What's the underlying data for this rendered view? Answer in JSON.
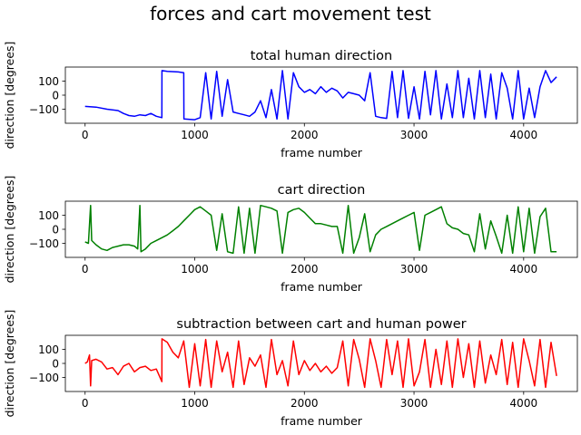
{
  "figure": {
    "title": "forces and cart movement test"
  },
  "chart_data": [
    {
      "type": "line",
      "title": "total human direction",
      "xlabel": "frame number",
      "ylabel": "direction [degrees]",
      "xlim": [
        -180,
        4490
      ],
      "ylim": [
        -200,
        200
      ],
      "xticks": [
        0,
        1000,
        2000,
        3000,
        4000
      ],
      "yticks": [
        100,
        0,
        -100
      ],
      "color": "#0000ff",
      "x": [
        0,
        100,
        200,
        300,
        350,
        400,
        450,
        500,
        550,
        600,
        650,
        700,
        701,
        750,
        850,
        900,
        901,
        1000,
        1050,
        1100,
        1150,
        1200,
        1250,
        1300,
        1350,
        1400,
        1450,
        1500,
        1550,
        1600,
        1650,
        1700,
        1750,
        1800,
        1850,
        1900,
        1950,
        2000,
        2050,
        2100,
        2150,
        2200,
        2250,
        2300,
        2350,
        2400,
        2450,
        2500,
        2550,
        2600,
        2650,
        2700,
        2750,
        2800,
        2850,
        2900,
        2950,
        3000,
        3050,
        3100,
        3150,
        3200,
        3250,
        3300,
        3350,
        3400,
        3450,
        3500,
        3550,
        3600,
        3650,
        3700,
        3750,
        3800,
        3850,
        3900,
        3950,
        4000,
        4050,
        4100,
        4150,
        4200,
        4250,
        4300
      ],
      "y": [
        -80,
        -85,
        -100,
        -110,
        -130,
        -145,
        -150,
        -140,
        -145,
        -130,
        -150,
        -160,
        175,
        170,
        165,
        160,
        -170,
        -175,
        -160,
        160,
        -170,
        170,
        -150,
        110,
        -120,
        -130,
        -140,
        -150,
        -120,
        -40,
        -160,
        40,
        -170,
        175,
        -170,
        160,
        60,
        20,
        40,
        10,
        60,
        20,
        50,
        30,
        -20,
        20,
        10,
        0,
        -40,
        160,
        -150,
        -160,
        -165,
        170,
        -160,
        175,
        -165,
        60,
        -170,
        170,
        -140,
        175,
        -170,
        80,
        -160,
        175,
        -160,
        120,
        -170,
        175,
        -160,
        150,
        -170,
        160,
        50,
        -170,
        175,
        -170,
        50,
        -160,
        60,
        175,
        90,
        130
      ]
    },
    {
      "type": "line",
      "title": "cart direction",
      "xlabel": "frame number",
      "ylabel": "direction [degrees]",
      "xlim": [
        -180,
        4490
      ],
      "ylim": [
        -200,
        200
      ],
      "xticks": [
        0,
        1000,
        2000,
        3000,
        4000
      ],
      "yticks": [
        100,
        0,
        -100
      ],
      "color": "#008000",
      "x": [
        0,
        30,
        50,
        60,
        100,
        150,
        200,
        250,
        300,
        350,
        400,
        450,
        480,
        500,
        510,
        550,
        600,
        650,
        700,
        750,
        800,
        850,
        900,
        950,
        1000,
        1050,
        1100,
        1150,
        1200,
        1250,
        1300,
        1350,
        1400,
        1450,
        1500,
        1550,
        1600,
        1650,
        1700,
        1750,
        1800,
        1850,
        1900,
        1950,
        2000,
        2050,
        2100,
        2150,
        2200,
        2250,
        2300,
        2350,
        2400,
        2450,
        2500,
        2550,
        2600,
        2650,
        2700,
        2750,
        2800,
        2850,
        2900,
        2950,
        3000,
        3050,
        3100,
        3150,
        3200,
        3250,
        3300,
        3350,
        3400,
        3450,
        3500,
        3550,
        3600,
        3650,
        3700,
        3750,
        3800,
        3850,
        3900,
        3950,
        4000,
        4050,
        4100,
        4150,
        4200,
        4250,
        4300
      ],
      "y": [
        -90,
        -100,
        170,
        -80,
        -110,
        -140,
        -150,
        -130,
        -120,
        -110,
        -110,
        -120,
        -140,
        170,
        -160,
        -140,
        -100,
        -80,
        -60,
        -40,
        -10,
        20,
        60,
        100,
        140,
        160,
        130,
        100,
        -150,
        110,
        -160,
        -170,
        160,
        -170,
        150,
        -170,
        170,
        160,
        150,
        130,
        -170,
        120,
        140,
        150,
        120,
        80,
        40,
        40,
        30,
        20,
        20,
        -170,
        170,
        -170,
        -60,
        110,
        -160,
        -40,
        0,
        20,
        40,
        60,
        80,
        100,
        120,
        -150,
        100,
        120,
        140,
        160,
        40,
        10,
        0,
        -30,
        -40,
        -160,
        110,
        -140,
        60,
        -50,
        -170,
        100,
        -170,
        160,
        -160,
        150,
        -170,
        90,
        150,
        -160,
        -160
      ]
    },
    {
      "type": "line",
      "title": "subtraction between cart and human power",
      "xlabel": "frame number",
      "ylabel": "direction [degrees]",
      "xlim": [
        -180,
        4490
      ],
      "ylim": [
        -200,
        200
      ],
      "xticks": [
        0,
        1000,
        2000,
        3000,
        4000
      ],
      "yticks": [
        100,
        0,
        -100
      ],
      "color": "#ff0000",
      "x": [
        0,
        20,
        40,
        50,
        60,
        100,
        150,
        200,
        250,
        300,
        350,
        400,
        450,
        500,
        550,
        600,
        650,
        700,
        701,
        750,
        800,
        850,
        900,
        950,
        1000,
        1050,
        1100,
        1150,
        1200,
        1250,
        1300,
        1350,
        1400,
        1450,
        1500,
        1550,
        1600,
        1650,
        1700,
        1750,
        1800,
        1850,
        1900,
        1950,
        2000,
        2050,
        2100,
        2150,
        2200,
        2250,
        2300,
        2350,
        2400,
        2450,
        2500,
        2550,
        2600,
        2650,
        2700,
        2750,
        2800,
        2850,
        2900,
        2950,
        3000,
        3050,
        3100,
        3150,
        3200,
        3250,
        3300,
        3350,
        3400,
        3450,
        3500,
        3550,
        3600,
        3650,
        3700,
        3750,
        3800,
        3850,
        3900,
        3950,
        4000,
        4050,
        4100,
        4150,
        4200,
        4250,
        4300
      ],
      "y": [
        0,
        10,
        60,
        -160,
        20,
        30,
        10,
        -40,
        -30,
        -80,
        -20,
        0,
        -60,
        -30,
        -20,
        -50,
        -40,
        -130,
        175,
        150,
        80,
        40,
        160,
        -170,
        140,
        -160,
        170,
        -170,
        160,
        -60,
        80,
        -170,
        160,
        -150,
        40,
        -20,
        60,
        -170,
        170,
        -80,
        20,
        -160,
        160,
        -80,
        20,
        -50,
        0,
        -60,
        -20,
        -70,
        -30,
        160,
        -160,
        170,
        30,
        -170,
        175,
        20,
        -170,
        170,
        -80,
        160,
        -170,
        175,
        -160,
        -60,
        170,
        -170,
        100,
        -150,
        160,
        -170,
        175,
        -100,
        140,
        -170,
        160,
        -140,
        60,
        -80,
        170,
        -150,
        150,
        -170,
        175,
        20,
        -160,
        170,
        -170,
        150,
        -90
      ]
    }
  ]
}
